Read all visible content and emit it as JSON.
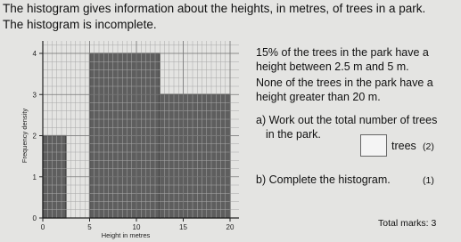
{
  "intro": [
    "The histogram gives information about the heights, in metres, of trees in a park.",
    "The histogram is incomplete."
  ],
  "chart_data": {
    "type": "histogram",
    "xlabel": "Height in metres",
    "ylabel": "Frequency density",
    "bins": [
      0,
      2.5,
      5,
      12.5,
      20
    ],
    "counts": [
      2,
      null,
      4,
      3
    ],
    "xlim": [
      0,
      20
    ],
    "xticks": [
      0,
      5,
      10,
      15,
      20
    ],
    "ylim": [
      0,
      4
    ],
    "yticks": [
      0,
      1,
      2,
      3,
      4
    ],
    "color": "#5e5e5e",
    "grid": true
  },
  "info": [
    "15% of the trees in the park have a",
    "height between 2.5 m and 5 m.",
    "None of the trees in the park have a",
    "height greater than 20 m."
  ],
  "question_a": [
    "a) Work out the total number of trees",
    "in the park."
  ],
  "answer_unit": "trees",
  "marks_a": "(2)",
  "question_b": "b) Complete the histogram.",
  "marks_b": "(1)",
  "total": "Total marks: 3"
}
